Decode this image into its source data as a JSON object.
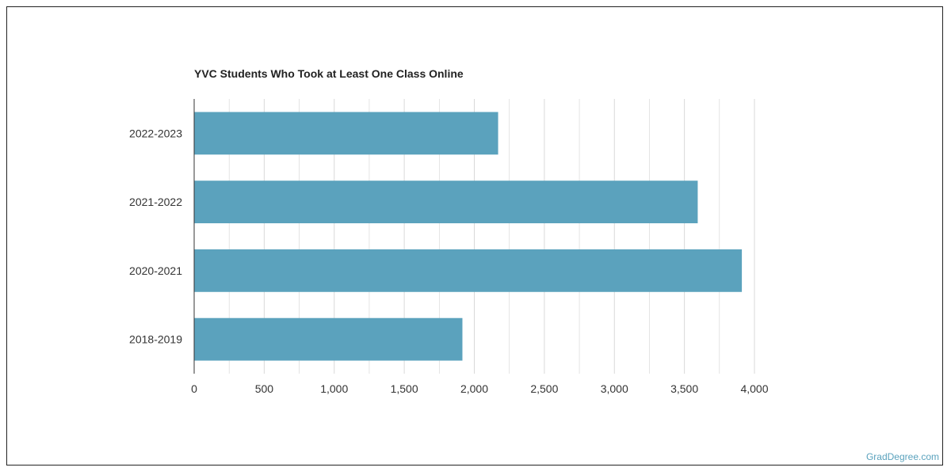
{
  "title": "YVC Students Who Took at Least One Class Online",
  "watermark": "GradDegree.com",
  "colors": {
    "bar": "#5ba2bd",
    "grid": "#d9d9d9",
    "axis": "#333333",
    "watermark": "#5aa2bd"
  },
  "chart_data": {
    "type": "bar",
    "orientation": "horizontal",
    "title": "YVC Students Who Took at Least One Class Online",
    "categories": [
      "2022-2023",
      "2021-2022",
      "2020-2021",
      "2018-2019"
    ],
    "values": [
      2170,
      3595,
      3910,
      1915
    ],
    "xlabel": "",
    "ylabel": "",
    "xlim": [
      0,
      4000
    ],
    "xticks": [
      0,
      500,
      1000,
      1500,
      2000,
      2500,
      3000,
      3500,
      4000
    ],
    "xtick_labels": [
      "0",
      "500",
      "1,000",
      "1,500",
      "2,000",
      "2,500",
      "3,000",
      "3,500",
      "4,000"
    ],
    "grid": true,
    "legend": "none"
  }
}
